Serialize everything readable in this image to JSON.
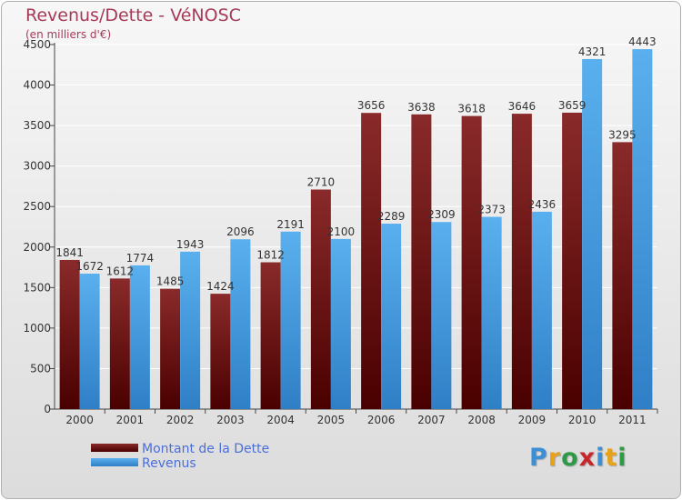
{
  "chart_data": {
    "type": "bar",
    "title": "Revenus/Dette - VéNOSC",
    "subtitle": "(en milliers d'€)",
    "categories": [
      "2000",
      "2001",
      "2002",
      "2003",
      "2004",
      "2005",
      "2006",
      "2007",
      "2008",
      "2009",
      "2010",
      "2011"
    ],
    "series": [
      {
        "name": "Montant de la Dette",
        "color": "#7a1a1a",
        "values": [
          1841,
          1612,
          1485,
          1424,
          1812,
          2710,
          3656,
          3638,
          3618,
          3646,
          3659,
          3295
        ]
      },
      {
        "name": "Revenus",
        "color": "#4aa3e6",
        "values": [
          1672,
          1774,
          1943,
          2096,
          2191,
          2100,
          2289,
          2309,
          2373,
          2436,
          4321,
          4443
        ]
      }
    ],
    "yticks": [
      0,
      500,
      1000,
      1500,
      2000,
      2500,
      3000,
      3500,
      4000,
      4500
    ],
    "ylim": [
      0,
      4500
    ],
    "grid": true,
    "legend": "bottom-left"
  },
  "legend": {
    "debt_label": "Montant de la Dette",
    "revenue_label": "Revenus"
  },
  "logo": {
    "letters": [
      "P",
      "r",
      "o",
      "x",
      "i",
      "t",
      "i"
    ],
    "colors": [
      "#3a8fd6",
      "#e7a21a",
      "#2f9a45",
      "#c7262a",
      "#3a8fd6",
      "#e7a21a",
      "#2f9a45"
    ]
  }
}
